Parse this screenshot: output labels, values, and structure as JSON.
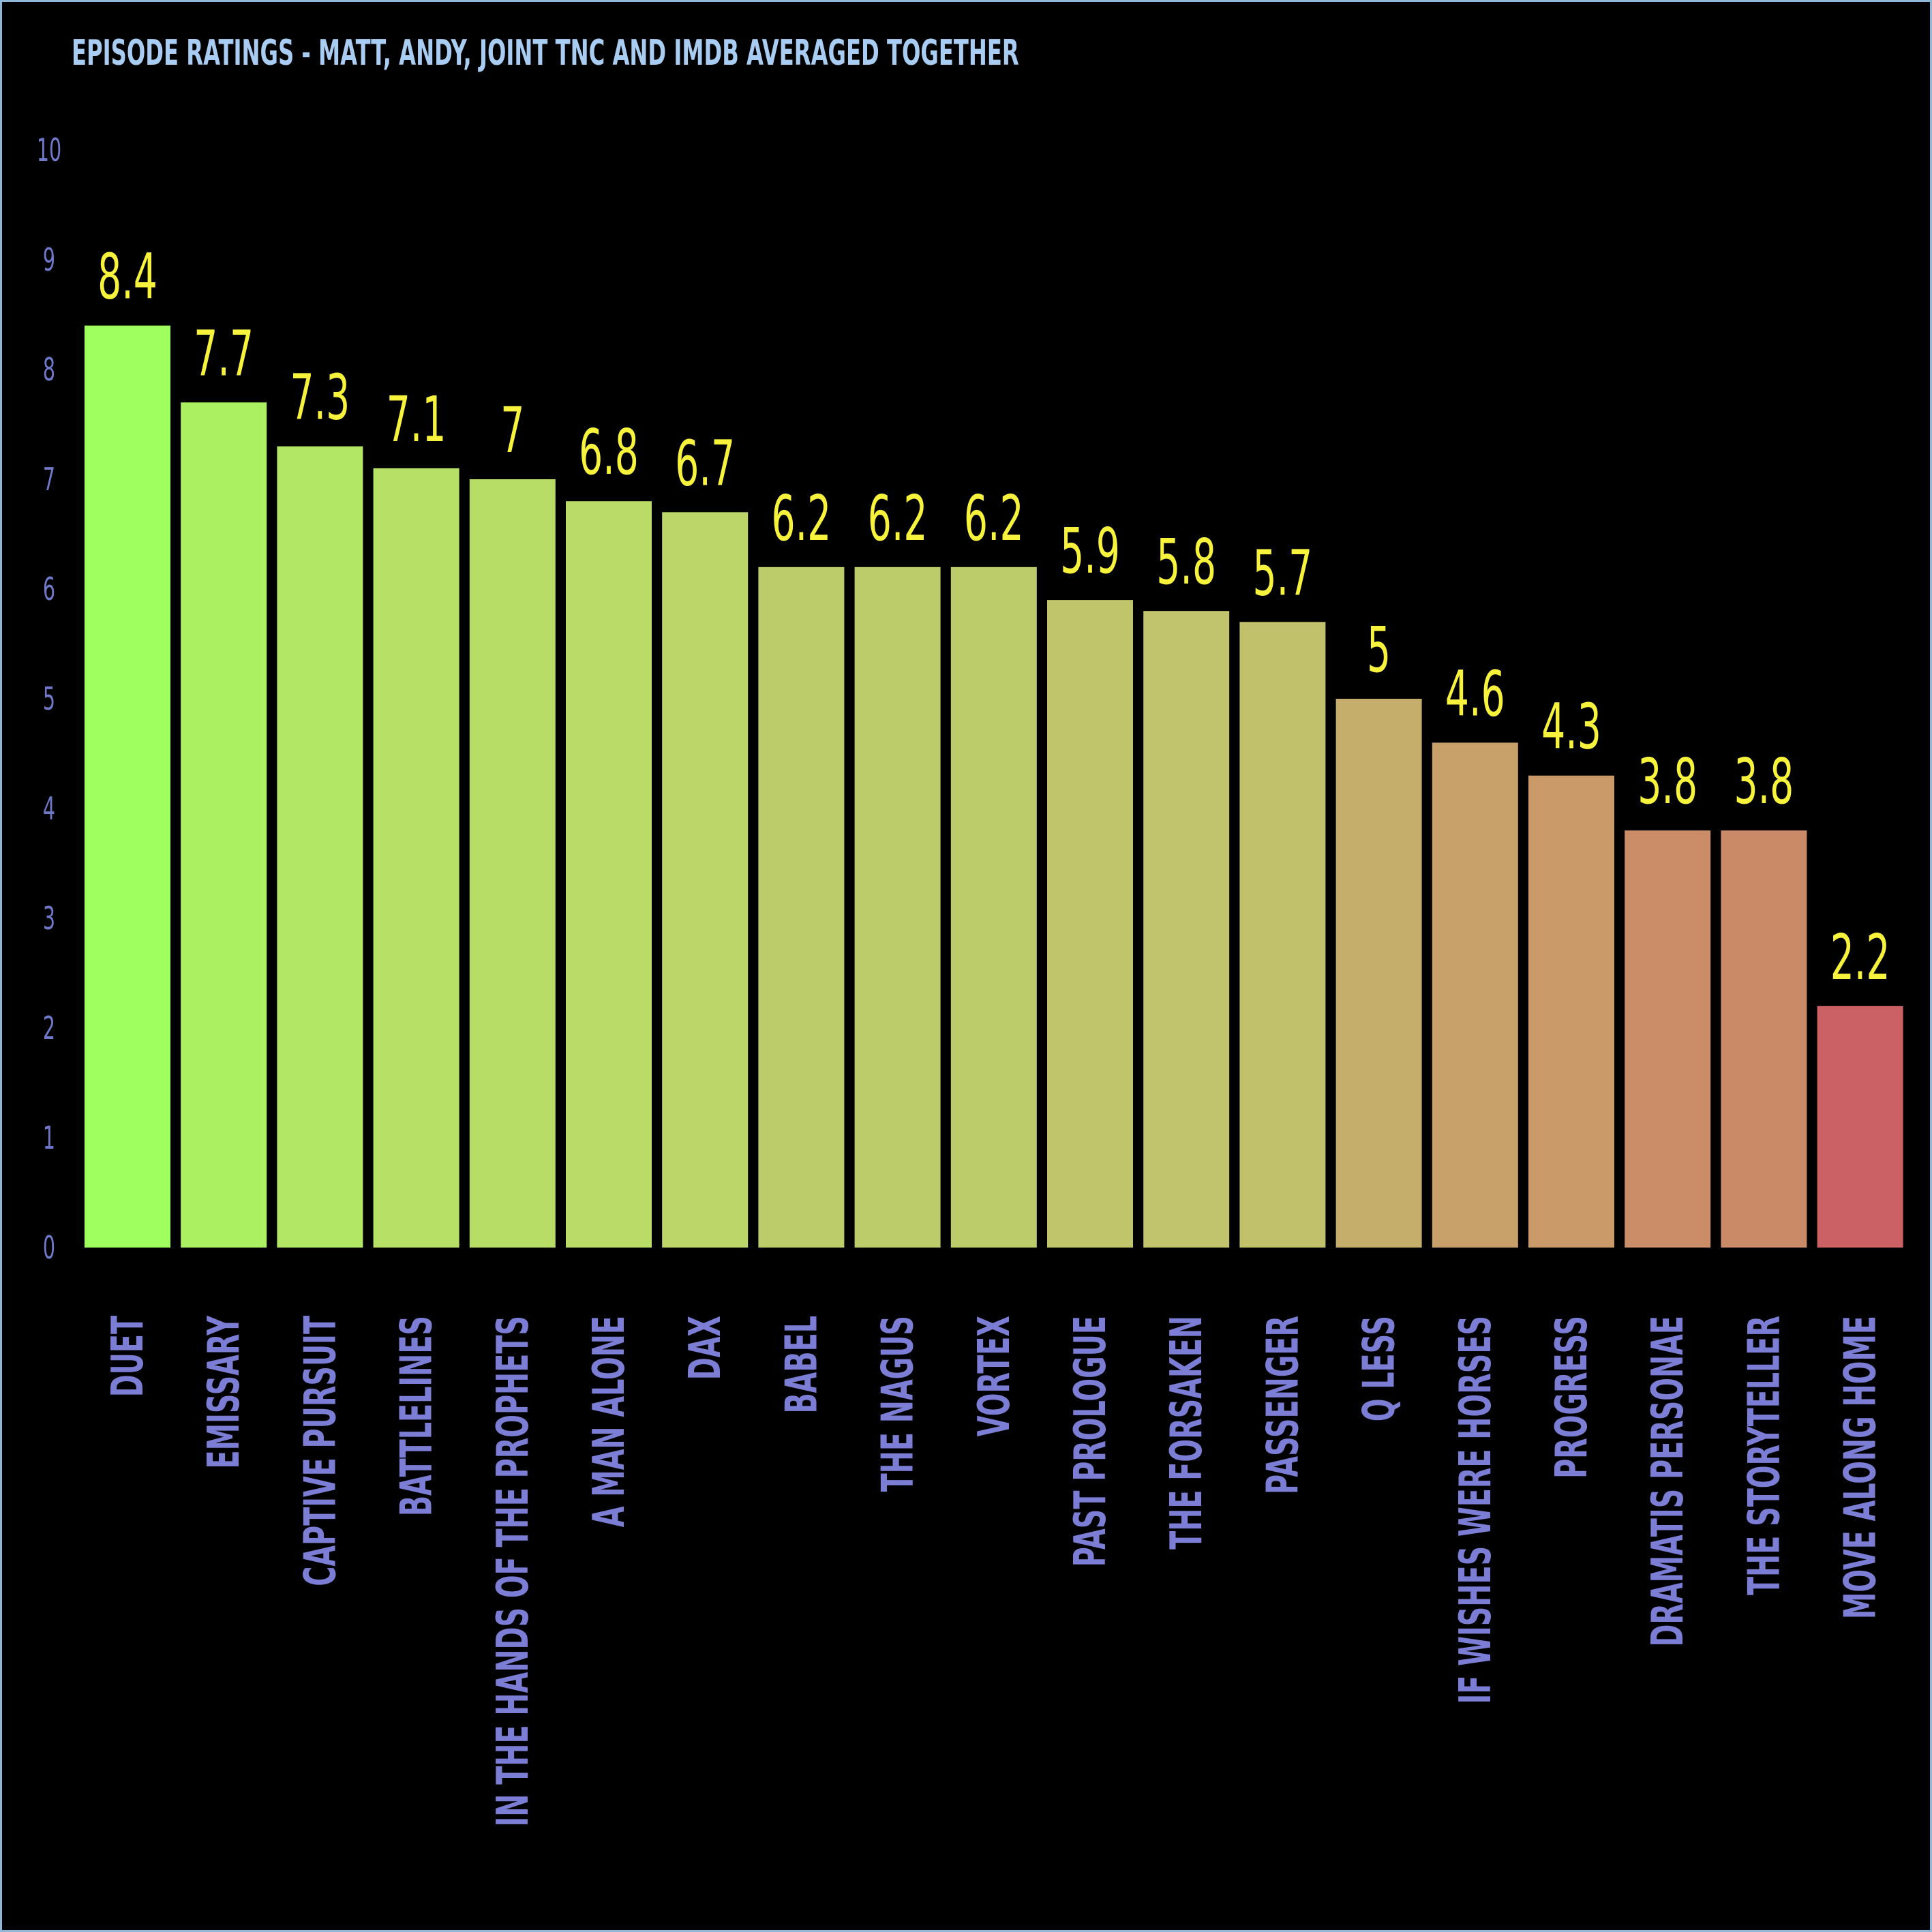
{
  "chart_data": {
    "type": "bar",
    "title": "EPISODE RATINGS - MATT, ANDY, JOINT TNC AND IMDB AVERAGED TOGETHER",
    "xlabel": "",
    "ylabel": "",
    "ylim": [
      0,
      10
    ],
    "yticks": [
      "0",
      "1",
      "2",
      "3",
      "4",
      "5",
      "6",
      "7",
      "8",
      "9",
      "10"
    ],
    "grid": false,
    "categories": [
      "DUET",
      "EMISSARY",
      "CAPTIVE PURSUIT",
      "BATTLELINES",
      "IN THE HANDS OF THE PROPHETS",
      "A MAN ALONE",
      "DAX",
      "BABEL",
      "THE NAGUS",
      "VORTEX",
      "PAST PROLOGUE",
      "THE FORSAKEN",
      "PASSENGER",
      "Q LESS",
      "IF WISHES WERE HORSES",
      "PROGRESS",
      "DRAMATIS PERSONAE",
      "THE STORYTELLER",
      "MOVE ALONG HOME"
    ],
    "values": [
      8.4,
      7.7,
      7.3,
      7.1,
      7,
      6.8,
      6.7,
      6.2,
      6.2,
      6.2,
      5.9,
      5.8,
      5.7,
      5,
      4.6,
      4.3,
      3.8,
      3.8,
      2.2
    ],
    "colors": [
      "#9eff5e",
      "#aaf061",
      "#b1e765",
      "#b6e166",
      "#b8dd67",
      "#badb68",
      "#bcd669",
      "#bdcc6b",
      "#bdcc6b",
      "#bdcc6b",
      "#c0c56b",
      "#c1c46c",
      "#c1c16c",
      "#c5ae6b",
      "#c8a06a",
      "#ca9a69",
      "#cb8c68",
      "#cb8a67",
      "#cb6164"
    ],
    "value_label_color": "#f7f23b",
    "axis_label_color": "#6f78c9",
    "title_color": "#a9cdf2",
    "frame_color": "#8fb8d8"
  }
}
